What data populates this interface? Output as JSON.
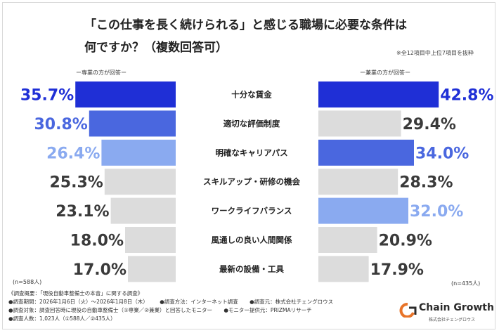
{
  "title_line1": "「この仕事を長く続けられる」と感じる職場に必要な条件は",
  "title_line2": "何ですか？（複数回答可）",
  "note": "※全12項目中上位7項目を抜粋",
  "left_label": "ー専業の方が回答ー",
  "right_label": "ー兼業の方が回答ー",
  "left_n": "(n=588人)",
  "right_n": "(n=435人)",
  "footer": {
    "line1": "《調査概要：「現役自動車整備士の本音」に関する調査》",
    "period": "●調査期間：2026年1月6日（火）〜2026年1月8日（木）",
    "method": "●調査方法：インターネット調査",
    "company": "●調査元：株式会社チェングロウス",
    "target": "●調査対象：調査回答時に現役の自動車整備士（①専業／②兼業）と回答したモニター",
    "provider": "●モニター提供元：PRIZMAリサーチ",
    "count": "●調査人数：1,023人（①588人／②435人）"
  },
  "logo": {
    "brand": "Chain Growth",
    "sub": "株式会社チェングロウス"
  },
  "chart_data": {
    "type": "bar",
    "categories": [
      "十分な賃金",
      "適切な評価制度",
      "明確なキャリアパス",
      "スキルアップ・研修の機会",
      "ワークライフバランス",
      "風通しの良い人間関係",
      "最新の設備・工具"
    ],
    "series": [
      {
        "name": "ー専業の方が回答ー",
        "values": [
          35.7,
          30.8,
          26.4,
          25.3,
          23.1,
          18.0,
          17.0
        ],
        "labels": [
          "35.7%",
          "30.8%",
          "26.4%",
          "25.3%",
          "23.1%",
          "18.0%",
          "17.0%"
        ],
        "colors": [
          "#1f2fd6",
          "#4a67df",
          "#8aaaf0",
          "#dcdcdc",
          "#dcdcdc",
          "#dcdcdc",
          "#dcdcdc"
        ],
        "label_colors": [
          "#1f2fd6",
          "#4a67df",
          "#8aaaf0",
          "#3a3a3a",
          "#3a3a3a",
          "#3a3a3a",
          "#3a3a3a"
        ]
      },
      {
        "name": "ー兼業の方が回答ー",
        "values": [
          42.8,
          29.4,
          34.0,
          28.3,
          32.0,
          20.9,
          17.9
        ],
        "labels": [
          "42.8%",
          "29.4%",
          "34.0%",
          "28.3%",
          "32.0%",
          "20.9%",
          "17.9%"
        ],
        "colors": [
          "#1f2fd6",
          "#dcdcdc",
          "#4a67df",
          "#dcdcdc",
          "#8aaaf0",
          "#dcdcdc",
          "#dcdcdc"
        ],
        "label_colors": [
          "#1f2fd6",
          "#3a3a3a",
          "#4a67df",
          "#3a3a3a",
          "#8aaaf0",
          "#3a3a3a",
          "#3a3a3a"
        ]
      }
    ],
    "ylim": [
      0,
      45
    ]
  }
}
